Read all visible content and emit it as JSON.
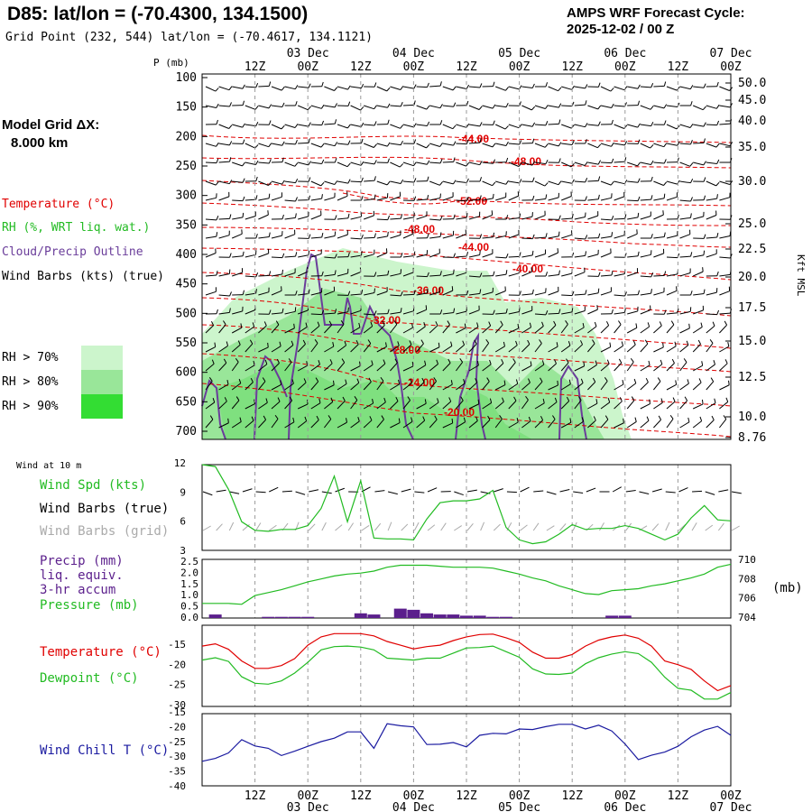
{
  "header": {
    "station_title": "D85:  lat/lon = (-70.4300, 134.1500)",
    "grid_point": "Grid Point (232, 544) lat/lon = (-70.4617, 134.1121)",
    "cycle_line1": "AMPS WRF Forecast Cycle:",
    "cycle_line2": "2025-12-02 / 00  Z"
  },
  "model_grid": {
    "label": "Model Grid ΔX:",
    "value": "8.000 km"
  },
  "legend": {
    "temperature": "Temperature (°C)",
    "rh": "RH (%, WRT liq. wat.)",
    "cloud": "Cloud/Precip Outline",
    "wind": "Wind Barbs (kts) (true)",
    "rh_levels": [
      "RH > 70%",
      "RH > 80%",
      "RH > 90%"
    ]
  },
  "colors": {
    "temp": "#e00000",
    "rh70": "#ccf5cc",
    "rh80": "#99e699",
    "rh90": "#33dd33",
    "cloud": "#6a3d9a",
    "wind": "#000000",
    "windgrid": "#aaaaaa",
    "speed": "#22bb22",
    "precip": "#5b1f8c",
    "pressure": "#22bb22",
    "dewpoint": "#22bb22",
    "windchill": "#1a1aa0",
    "grid": "#9a9a9a"
  },
  "time_axis": {
    "top_hours": [
      "12Z",
      "00Z",
      "12Z",
      "00Z",
      "12Z",
      "00Z",
      "12Z",
      "00Z",
      "12Z",
      "00Z"
    ],
    "top_dates": [
      "03 Dec",
      "04 Dec",
      "05 Dec",
      "06 Dec",
      "07 Dec"
    ],
    "bottom_hours": [
      "12Z",
      "00Z",
      "12Z",
      "00Z",
      "12Z",
      "00Z",
      "12Z",
      "00Z",
      "12Z",
      "00Z"
    ],
    "bottom_dates": [
      "03 Dec",
      "04 Dec",
      "05 Dec",
      "06 Dec",
      "07 Dec"
    ]
  },
  "pressure_axis": {
    "label": "P (mb)",
    "ticks": [
      "100",
      "150",
      "200",
      "250",
      "300",
      "350",
      "400",
      "450",
      "500",
      "550",
      "600",
      "650",
      "700"
    ]
  },
  "height_axis": {
    "label": "Kft MSL",
    "ticks": [
      "50.0",
      "45.0",
      "40.0",
      "35.0",
      "30.0",
      "25.0",
      "22.5",
      "20.0",
      "17.5",
      "15.0",
      "12.5",
      "10.0",
      "8.76"
    ]
  },
  "temp_contours": [
    "-44.00",
    "-48.00",
    "-52.00",
    "-48.00",
    "-44.00",
    "-40.00",
    "-36.00",
    "-32.00",
    "-28.00",
    "-24.00",
    "-20.00"
  ],
  "surface": {
    "wind_header": "Wind at 10 m",
    "wind_spd_label": "Wind Spd (kts)",
    "wind_barbs_true_label": "Wind Barbs (true)",
    "wind_barbs_grid_label": "Wind Barbs (grid)",
    "precip_label1": "Precip (mm)",
    "precip_label2": "liq. equiv.",
    "precip_label3": "3-hr accum",
    "pressure_label": "Pressure (mb)",
    "pressure_unit": "(mb)",
    "temperature_label": "Temperature (°C)",
    "dewpoint_label": "Dewpoint (°C)",
    "windchill_label": "Wind Chill T (°C)"
  },
  "chart_data": [
    {
      "type": "line",
      "title": "Wind speed at 10 m (kts)",
      "ylim": [
        3,
        12
      ],
      "yticks": [
        "12",
        "9",
        "6",
        "3"
      ],
      "x_hours": [
        0,
        3,
        6,
        9,
        12,
        15,
        18,
        21,
        24,
        27,
        30,
        33,
        36,
        39,
        42,
        45,
        48,
        51,
        54,
        57,
        60,
        63,
        66,
        69,
        72,
        75,
        78,
        81,
        84,
        87,
        90,
        93,
        96,
        99,
        102,
        105,
        108,
        111,
        114,
        117,
        120
      ],
      "values": [
        12,
        11.8,
        9.4,
        6,
        5.1,
        5,
        5.2,
        5.2,
        5.6,
        7.4,
        10.8,
        6,
        10.3,
        4.3,
        4.2,
        4.2,
        4.1,
        6.3,
        8,
        8.2,
        8.2,
        8.4,
        9.3,
        5.4,
        4.1,
        3.7,
        3.9,
        4.7,
        5.7,
        5.2,
        5.3,
        5.3,
        5.6,
        5.3,
        4.7,
        4.1,
        4.7,
        6.4,
        7.7,
        6.2,
        6.1
      ]
    },
    {
      "type": "bar+line",
      "title": "Precip 3-hr accum (mm) and Pressure (mb)",
      "precip_ylim": [
        0,
        2.5
      ],
      "precip_yticks": [
        "2.5",
        "2.0",
        "1.5",
        "1.0",
        "0.5",
        "0.0"
      ],
      "pressure_ylim": [
        704,
        710
      ],
      "pressure_yticks": [
        "710",
        "708",
        "706",
        "704"
      ],
      "precip_x_hours": [
        3,
        15,
        18,
        21,
        24,
        36,
        39,
        45,
        48,
        51,
        54,
        57,
        60,
        63,
        66,
        69,
        93,
        96
      ],
      "precip_values": [
        0.15,
        0.05,
        0.05,
        0.05,
        0.05,
        0.2,
        0.15,
        0.4,
        0.35,
        0.2,
        0.15,
        0.15,
        0.1,
        0.1,
        0.05,
        0.05,
        0.1,
        0.1
      ],
      "pressure_x_hours": [
        0,
        3,
        6,
        9,
        12,
        15,
        18,
        21,
        24,
        27,
        30,
        33,
        36,
        39,
        42,
        45,
        48,
        51,
        54,
        57,
        60,
        63,
        66,
        69,
        72,
        75,
        78,
        81,
        84,
        87,
        90,
        93,
        96,
        99,
        102,
        105,
        108,
        111,
        114,
        117,
        120
      ],
      "pressure_values": [
        705.5,
        705.5,
        705.5,
        705.4,
        706.3,
        706.6,
        706.9,
        707.3,
        707.7,
        708,
        708.3,
        708.5,
        708.6,
        708.8,
        709.2,
        709.4,
        709.4,
        709.4,
        709.3,
        709.2,
        709.2,
        709.2,
        709.1,
        708.8,
        708.5,
        708.1,
        707.8,
        707.3,
        706.9,
        706.5,
        706.4,
        706.8,
        706.9,
        707,
        707.3,
        707.5,
        707.8,
        708.1,
        708.5,
        709.2,
        709.5
      ]
    },
    {
      "type": "line",
      "title": "Temperature and Dewpoint (°C)",
      "ylim": [
        -30,
        -12.5
      ],
      "yticks": [
        "-15",
        "-20",
        "-25",
        "-30"
      ],
      "x_hours": [
        0,
        3,
        6,
        9,
        12,
        15,
        18,
        21,
        24,
        27,
        30,
        33,
        36,
        39,
        42,
        45,
        48,
        51,
        54,
        57,
        60,
        63,
        66,
        69,
        72,
        75,
        78,
        81,
        84,
        87,
        90,
        93,
        96,
        99,
        102,
        105,
        108,
        111,
        114,
        117,
        120
      ],
      "series": [
        {
          "name": "Temperature",
          "values": [
            -17,
            -16.5,
            -17.7,
            -20.2,
            -21.8,
            -21.8,
            -21.2,
            -19.7,
            -16.8,
            -15,
            -14.3,
            -14.3,
            -14.3,
            -14.8,
            -16,
            -16.8,
            -17.6,
            -17.1,
            -16.8,
            -15.8,
            -15,
            -14.5,
            -14.4,
            -15.2,
            -16.2,
            -18.3,
            -19.6,
            -19.6,
            -18.8,
            -17,
            -15.7,
            -15,
            -14.6,
            -15.3,
            -17,
            -20.2,
            -21,
            -22,
            -24.5,
            -26.6,
            -25.5
          ]
        },
        {
          "name": "Dewpoint",
          "values": [
            -20,
            -19.5,
            -20.3,
            -23.6,
            -25,
            -25.2,
            -24.5,
            -22.8,
            -20.5,
            -17.8,
            -17.1,
            -17,
            -17.2,
            -17.8,
            -19.6,
            -19.8,
            -20,
            -19.6,
            -19.6,
            -18.5,
            -17.4,
            -17.3,
            -17,
            -18.2,
            -19.4,
            -21.9,
            -23,
            -23.1,
            -22.8,
            -20.8,
            -19.5,
            -18.7,
            -18.2,
            -18.6,
            -20.5,
            -23.7,
            -26.1,
            -26.5,
            -28.4,
            -28.4,
            -27
          ]
        }
      ]
    },
    {
      "type": "line",
      "title": "Wind Chill T (°C)",
      "ylim": [
        -40,
        -15
      ],
      "yticks": [
        "-15",
        "-20",
        "-25",
        "-30",
        "-35",
        "-40"
      ],
      "x_hours": [
        0,
        3,
        6,
        9,
        12,
        15,
        18,
        21,
        24,
        27,
        30,
        33,
        36,
        39,
        42,
        45,
        48,
        51,
        54,
        57,
        60,
        63,
        66,
        69,
        72,
        75,
        78,
        81,
        84,
        87,
        90,
        93,
        96,
        99,
        102,
        105,
        108,
        111,
        114,
        117,
        120
      ],
      "values": [
        -31.5,
        -30.5,
        -28.6,
        -24,
        -26.2,
        -27,
        -29.5,
        -28,
        -26.3,
        -24.7,
        -23.5,
        -21.3,
        -21.3,
        -27,
        -18.5,
        -19.2,
        -19.6,
        -25.7,
        -25.6,
        -25,
        -26.5,
        -22.5,
        -21.8,
        -22,
        -20.3,
        -20.5,
        -19.5,
        -18.7,
        -18.7,
        -20.3,
        -19,
        -21,
        -25.5,
        -30.9,
        -29.4,
        -28.3,
        -26.3,
        -23,
        -20.7,
        -19.4,
        -22.5
      ]
    }
  ]
}
